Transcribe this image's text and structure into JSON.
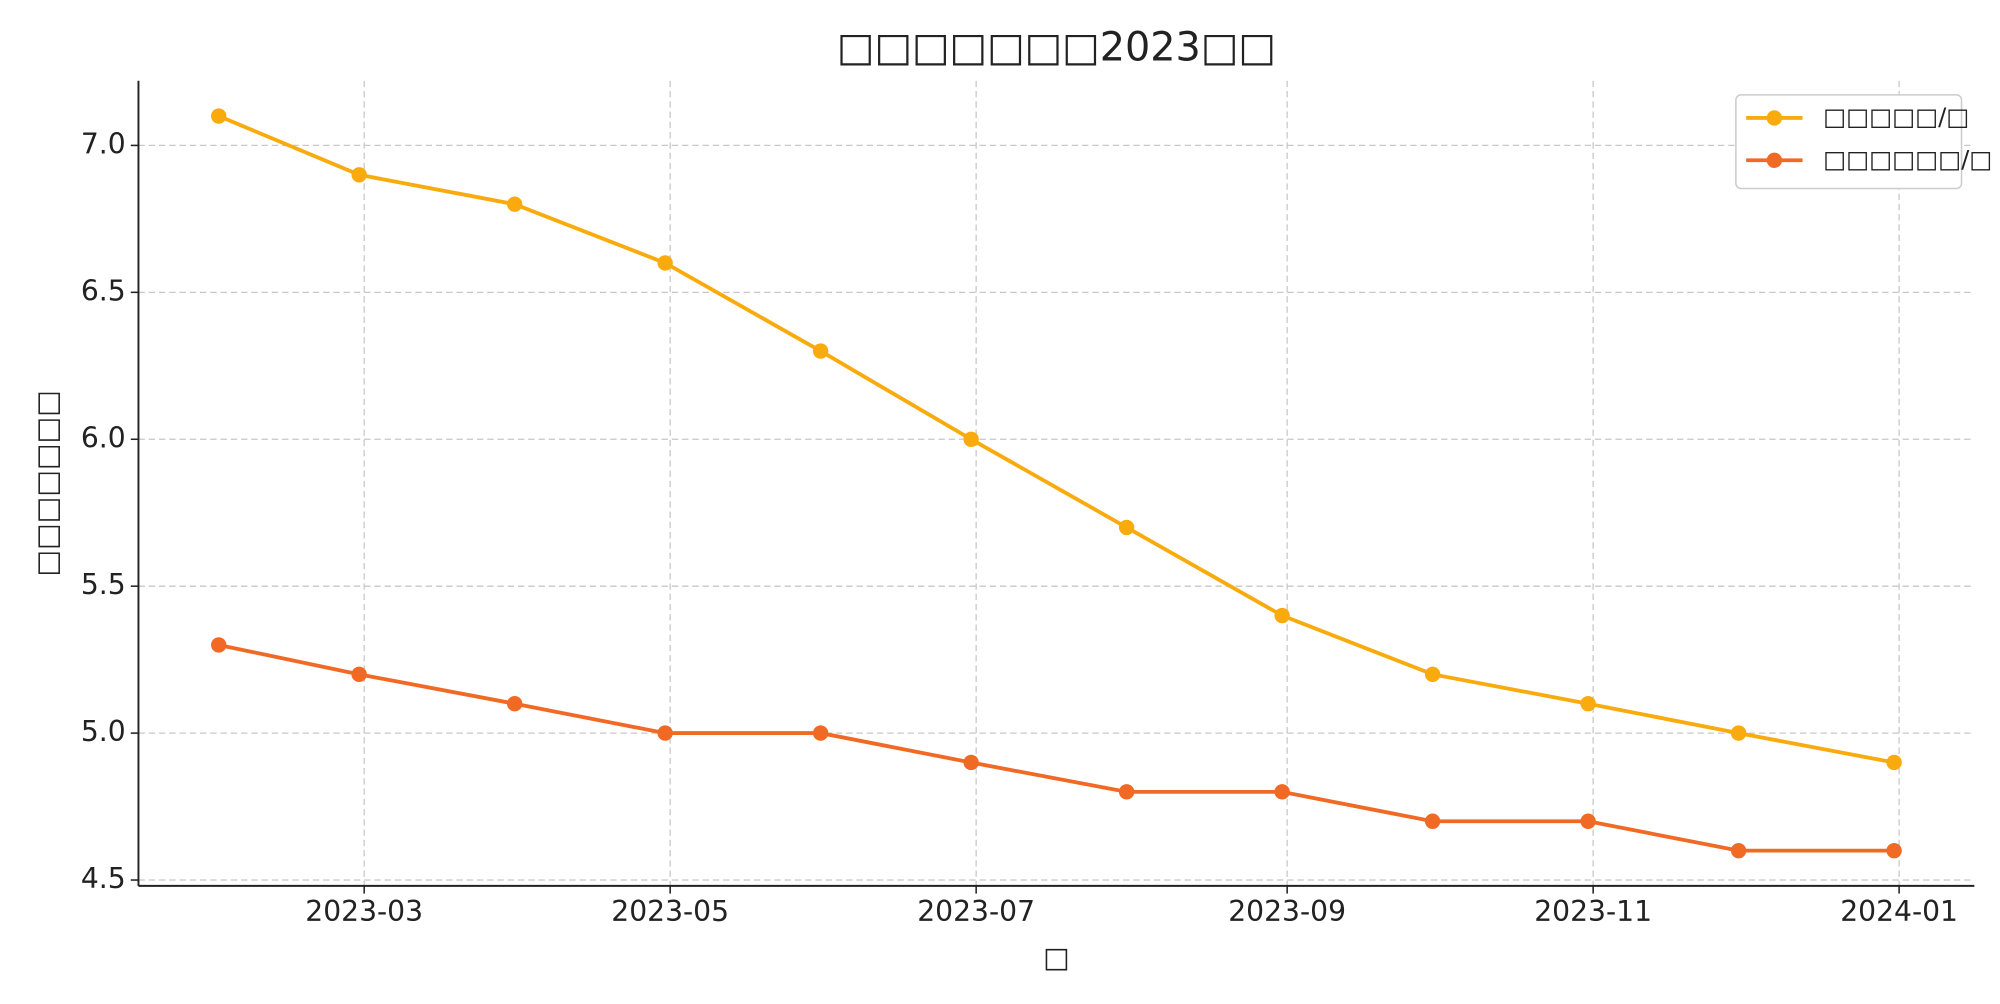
{
  "chart_data": {
    "type": "line",
    "title": "□□□□□□□2023□□",
    "xlabel": "□",
    "ylabel": "□□□□□□□",
    "x": [
      "2023-01",
      "2023-02",
      "2023-03",
      "2023-04",
      "2023-05",
      "2023-06",
      "2023-07",
      "2023-08",
      "2023-09",
      "2023-10",
      "2023-11",
      "2023-12"
    ],
    "series": [
      {
        "name": "□□□□□/□",
        "color": "#f9ab0e",
        "values": [
          7.1,
          6.9,
          6.8,
          6.6,
          6.3,
          6.0,
          5.7,
          5.4,
          5.2,
          5.1,
          5.0,
          4.9
        ]
      },
      {
        "name": "□□□□□□/□",
        "color": "#f06a25",
        "values": [
          5.3,
          5.2,
          5.1,
          5.0,
          5.0,
          4.9,
          4.8,
          4.8,
          4.7,
          4.7,
          4.6,
          4.6
        ]
      }
    ],
    "xlim": [
      "2023-01-15",
      "2024-01-16"
    ],
    "xticks": [
      "2023-03",
      "2023-05",
      "2023-07",
      "2023-09",
      "2023-11",
      "2024-01"
    ],
    "ylim": [
      4.48,
      7.22
    ],
    "yticks": [
      {
        "value": 4.5,
        "label": "4.5"
      },
      {
        "value": 5.0,
        "label": "5.0"
      },
      {
        "value": 5.5,
        "label": "5.5"
      },
      {
        "value": 6.0,
        "label": "6.0"
      },
      {
        "value": 6.5,
        "label": "6.5"
      },
      {
        "value": 7.0,
        "label": "7.0"
      }
    ],
    "grid": true,
    "legend": "upper right"
  }
}
